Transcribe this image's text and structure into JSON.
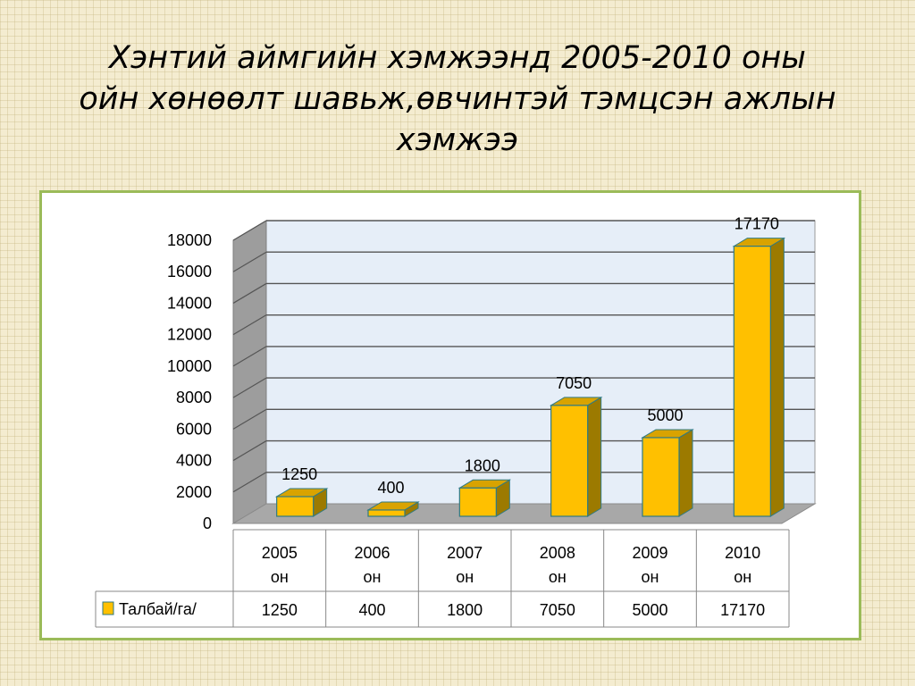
{
  "title": {
    "lines": [
      "Хэнтий аймгийн хэмжээнд 2005-2010 оны",
      "ойн хөнөөлт шавьж,өвчинтэй тэмцсэн ажлын",
      "хэмжээ"
    ]
  },
  "chart_data": {
    "type": "bar",
    "categories": [
      {
        "year": "2005",
        "suffix": "он"
      },
      {
        "year": "2006",
        "suffix": "он"
      },
      {
        "year": "2007",
        "suffix": "он"
      },
      {
        "year": "2008",
        "suffix": "он"
      },
      {
        "year": "2009",
        "suffix": "он"
      },
      {
        "year": "2010",
        "suffix": "он"
      }
    ],
    "series": [
      {
        "name": "Талбай/га/",
        "values": [
          1250,
          400,
          1800,
          7050,
          5000,
          17170
        ],
        "color": "#ffc000",
        "side_color": "#9c7a00"
      }
    ],
    "y_ticks": [
      0,
      2000,
      4000,
      6000,
      8000,
      10000,
      12000,
      14000,
      16000,
      18000
    ],
    "ylim": [
      0,
      18000
    ],
    "grid": true,
    "style": "3d-column",
    "data_labels": true,
    "data_table": true
  }
}
